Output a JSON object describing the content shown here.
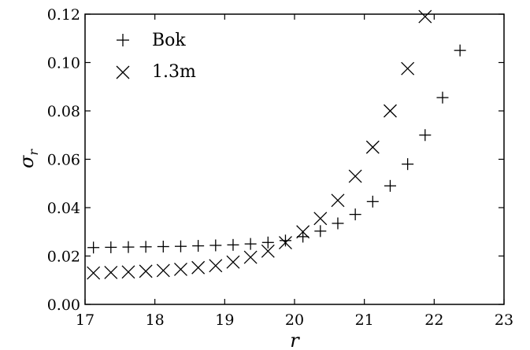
{
  "chart_data": {
    "type": "scatter",
    "title": "",
    "xlabel": "r",
    "ylabel": "σ_r",
    "ylabel_main": "σ",
    "ylabel_sub": "r",
    "xlim": [
      17,
      23
    ],
    "ylim": [
      0.0,
      0.12
    ],
    "xticks": [
      17,
      18,
      19,
      20,
      21,
      22,
      23
    ],
    "xtick_labels": [
      "17",
      "18",
      "19",
      "20",
      "21",
      "22",
      "23"
    ],
    "yticks": [
      0.0,
      0.02,
      0.04,
      0.06,
      0.08,
      0.1,
      0.12
    ],
    "ytick_labels": [
      "0.00",
      "0.02",
      "0.04",
      "0.06",
      "0.08",
      "0.10",
      "0.12"
    ],
    "grid": false,
    "legend_position": "top-left",
    "series": [
      {
        "name": "Bok",
        "marker": "plus",
        "color": "#000000",
        "x": [
          17.12,
          17.37,
          17.62,
          17.87,
          18.12,
          18.37,
          18.62,
          18.87,
          19.12,
          19.37,
          19.62,
          19.87,
          20.12,
          20.37,
          20.62,
          20.87,
          21.12,
          21.37,
          21.62,
          21.87,
          22.12,
          22.37
        ],
        "y": [
          0.0235,
          0.0236,
          0.0237,
          0.0238,
          0.0239,
          0.024,
          0.0242,
          0.0244,
          0.0246,
          0.025,
          0.0256,
          0.0264,
          0.028,
          0.0303,
          0.0335,
          0.0372,
          0.0425,
          0.049,
          0.058,
          0.07,
          0.0855,
          0.105
        ]
      },
      {
        "name": "1.3m",
        "marker": "x",
        "color": "#000000",
        "x": [
          17.12,
          17.37,
          17.62,
          17.87,
          18.12,
          18.37,
          18.62,
          18.87,
          19.12,
          19.37,
          19.62,
          19.87,
          20.12,
          20.37,
          20.62,
          20.87,
          21.12,
          21.37,
          21.62,
          21.87
        ],
        "y": [
          0.013,
          0.0132,
          0.0134,
          0.0137,
          0.014,
          0.0145,
          0.0152,
          0.016,
          0.0175,
          0.0195,
          0.022,
          0.0255,
          0.03,
          0.0355,
          0.043,
          0.053,
          0.065,
          0.08,
          0.0975,
          0.119
        ]
      }
    ]
  }
}
